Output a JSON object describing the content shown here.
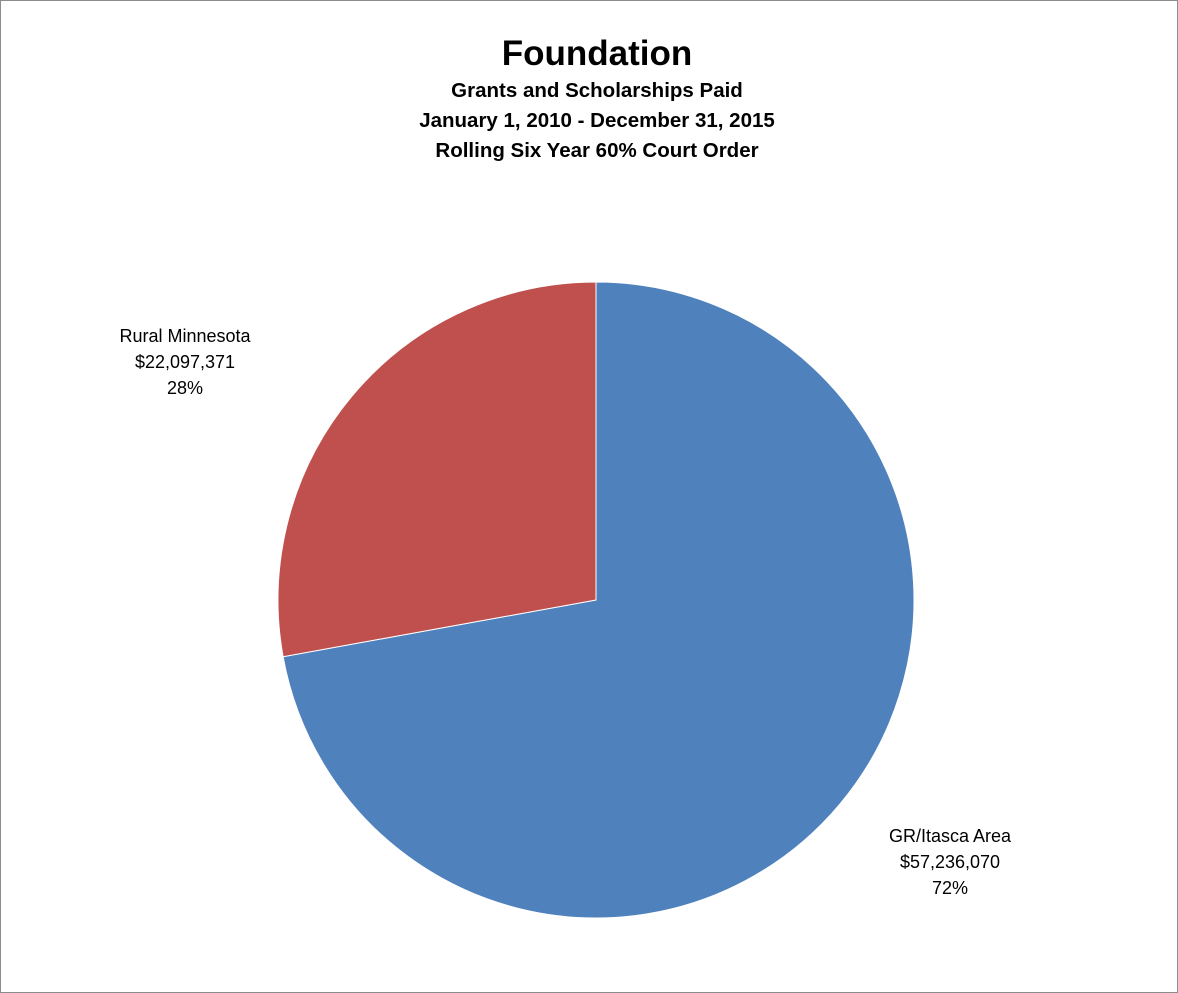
{
  "chart_data": {
    "type": "pie",
    "title": "Foundation",
    "subtitle": [
      "Grants and Scholarships Paid",
      "January 1, 2010 - December 31, 2015",
      "Rolling Six Year 60% Court Order"
    ],
    "slices": [
      {
        "name": "GR/Itasca Area",
        "value": 57236070,
        "value_label": "$57,236,070",
        "percent_label": "72%",
        "color": "#4f81bd"
      },
      {
        "name": "Rural Minnesota",
        "value": 22097371,
        "value_label": "$22,097,371",
        "percent_label": "28%",
        "color": "#c0504d"
      }
    ],
    "start_angle": "12 o'clock",
    "direction": "clockwise",
    "legend": "none"
  }
}
